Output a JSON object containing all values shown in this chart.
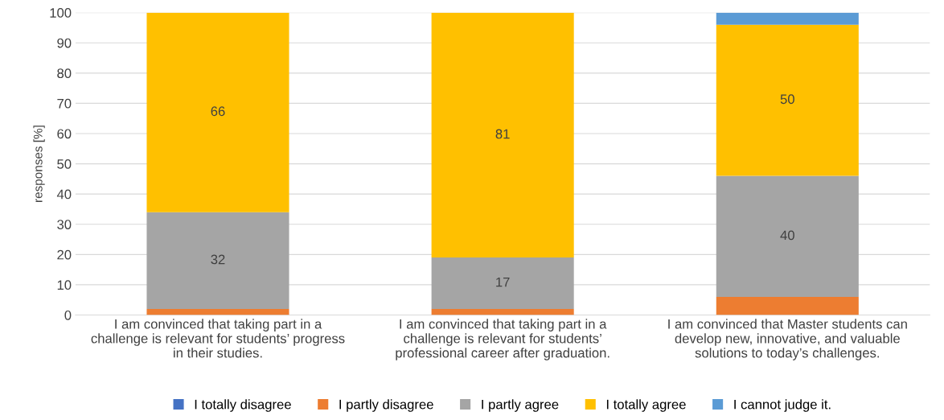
{
  "chart_data": {
    "type": "bar",
    "stacked": true,
    "ylabel": "responses [%]",
    "categories": [
      "I am convinced that taking part in a\nchallenge is relevant for students’ progress\nin their studies.",
      "I am convinced that taking part in a\nchallenge is relevant for students’\nprofessional career after graduation.",
      "I am convinced that Master students can\ndevelop new, innovative, and valuable\nsolutions to today’s challenges."
    ],
    "series": [
      {
        "name": "I totally disagree",
        "color": "#4472c4",
        "values": [
          0,
          0,
          0
        ],
        "value_labels": [
          null,
          null,
          null
        ]
      },
      {
        "name": "I partly disagree",
        "color": "#ed7d31",
        "values": [
          2,
          2,
          6
        ],
        "value_labels": [
          null,
          null,
          null
        ]
      },
      {
        "name": "I partly agree",
        "color": "#a5a5a5",
        "values": [
          32,
          17,
          40
        ],
        "value_labels": [
          "32",
          "17",
          "40"
        ]
      },
      {
        "name": "I totally agree",
        "color": "#ffc000",
        "values": [
          66,
          81,
          50
        ],
        "value_labels": [
          "66",
          "81",
          "50"
        ]
      },
      {
        "name": "I cannot judge it.",
        "color": "#5b9bd5",
        "values": [
          0,
          0,
          4
        ],
        "value_labels": [
          null,
          null,
          null
        ]
      }
    ],
    "ylim": [
      0,
      100
    ],
    "yticks": [
      0,
      10,
      20,
      30,
      40,
      50,
      60,
      70,
      80,
      90,
      100
    ],
    "grid": "y",
    "legend": "bottom"
  }
}
